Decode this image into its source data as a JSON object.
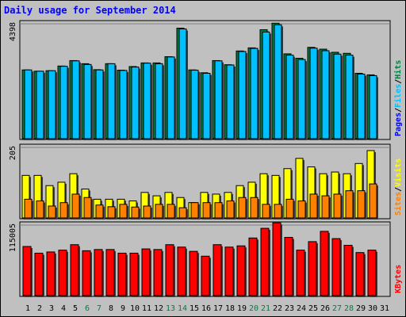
{
  "chart_data": {
    "type": "bar",
    "title": "Daily usage for September 2014",
    "categories": [
      "1",
      "2",
      "3",
      "4",
      "5",
      "6",
      "7",
      "8",
      "9",
      "10",
      "11",
      "12",
      "13",
      "14",
      "15",
      "16",
      "17",
      "18",
      "19",
      "20",
      "21",
      "22",
      "23",
      "24",
      "25",
      "26",
      "27",
      "28",
      "29",
      "30",
      "31"
    ],
    "weekend_days": [
      "6",
      "7",
      "13",
      "14",
      "20",
      "21",
      "27",
      "28"
    ],
    "colors": {
      "hits": "#008040",
      "files": "#00c0ff",
      "pages": "#0000ff",
      "visits": "#ffff00",
      "sites": "#ff8000",
      "kbytes": "#ff0000"
    },
    "panels": [
      {
        "name": "hits-files-pages",
        "ymax_label": "4398",
        "ymax": 4398,
        "right_label_parts": [
          {
            "text": "Pages",
            "key": "pages"
          },
          {
            "text": "/",
            "key": null
          },
          {
            "text": "Files",
            "key": "files"
          },
          {
            "text": "/",
            "key": null
          },
          {
            "text": "Hits",
            "key": "hits"
          }
        ],
        "series": [
          {
            "key": "hits",
            "values": [
              2650,
              2600,
              2620,
              2800,
              3010,
              2890,
              2660,
              2890,
              2640,
              2780,
              2920,
              2920,
              3160,
              4260,
              2650,
              2540,
              3010,
              2850,
              3380,
              3500,
              4200,
              4450,
              3270,
              3100,
              3520,
              3450,
              3330,
              3290,
              2520,
              2460,
              0
            ]
          },
          {
            "key": "files",
            "values": [
              2650,
              2600,
              2620,
              2790,
              3000,
              2860,
              2650,
              2890,
              2630,
              2760,
              2910,
              2890,
              3150,
              4230,
              2640,
              2520,
              3000,
              2840,
              3360,
              3480,
              4110,
              4390,
              3220,
              3050,
              3490,
              3390,
              3260,
              3220,
              2490,
              2430,
              0
            ]
          }
        ]
      },
      {
        "name": "visits-sites",
        "ymax_label": "205",
        "ymax": 205,
        "right_label_parts": [
          {
            "text": "Sites",
            "key": "sites"
          },
          {
            "text": "/",
            "key": null
          },
          {
            "text": "Visits",
            "key": "visits"
          }
        ],
        "series": [
          {
            "key": "visits",
            "values": [
              125,
              125,
              95,
              105,
              130,
              85,
              55,
              55,
              55,
              50,
              75,
              65,
              75,
              60,
              45,
              75,
              70,
              75,
              95,
              105,
              130,
              125,
              145,
              175,
              150,
              130,
              135,
              130,
              160,
              198,
              0
            ]
          },
          {
            "key": "sites",
            "values": [
              55,
              50,
              35,
              45,
              70,
              60,
              38,
              33,
              40,
              32,
              35,
              40,
              40,
              30,
              45,
              45,
              45,
              50,
              60,
              60,
              40,
              40,
              55,
              50,
              70,
              65,
              70,
              80,
              80,
              100,
              0
            ]
          }
        ]
      },
      {
        "name": "kbytes",
        "ymax_label": "115005",
        "ymax": 115005,
        "right_label_parts": [
          {
            "text": "KBytes",
            "key": "kbytes"
          }
        ],
        "series": [
          {
            "key": "kbytes",
            "values": [
              81000,
              70000,
              72000,
              75000,
              84000,
              74000,
              76000,
              76000,
              70000,
              70000,
              77000,
              76000,
              84000,
              80000,
              73000,
              65000,
              84000,
              80000,
              82000,
              95000,
              111000,
              120000,
              96000,
              75000,
              89000,
              106000,
              94000,
              83000,
              71000,
              75000,
              0
            ]
          }
        ]
      }
    ]
  }
}
